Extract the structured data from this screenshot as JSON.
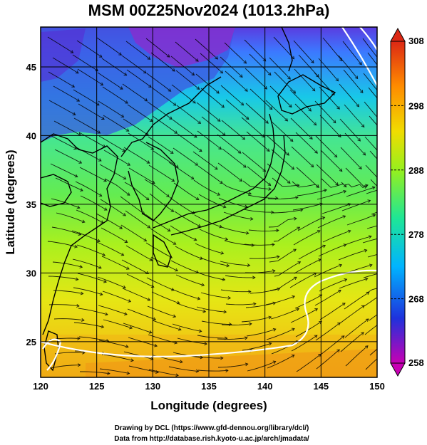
{
  "title": "MSM 00Z25Nov2024 (1013.2hPa)",
  "x_axis": {
    "label": "Longitude (degrees)",
    "range": [
      120,
      150
    ],
    "ticks": [
      "120",
      "125",
      "130",
      "135",
      "140",
      "145",
      "150"
    ]
  },
  "y_axis": {
    "label": "Latitude  (degrees)",
    "range": [
      22.4,
      47.9
    ],
    "ticks": [
      "25",
      "30",
      "35",
      "40",
      "45"
    ]
  },
  "colorbar": {
    "range": [
      258,
      308
    ],
    "ticks": [
      "308",
      "298",
      "288",
      "278",
      "268",
      "258"
    ],
    "colors": [
      "#c800b4",
      "#1e32dc",
      "#00b4ff",
      "#1ee696",
      "#96f01e",
      "#f0dc00",
      "#ff8c00",
      "#dc2814"
    ]
  },
  "credits": {
    "line1": "Drawing by DCL (https://www.gfd-dennou.org/library/dcl/)",
    "line2": "Data from http://database.rish.kyoto-u.ac.jp/arch/jmadata/"
  }
}
